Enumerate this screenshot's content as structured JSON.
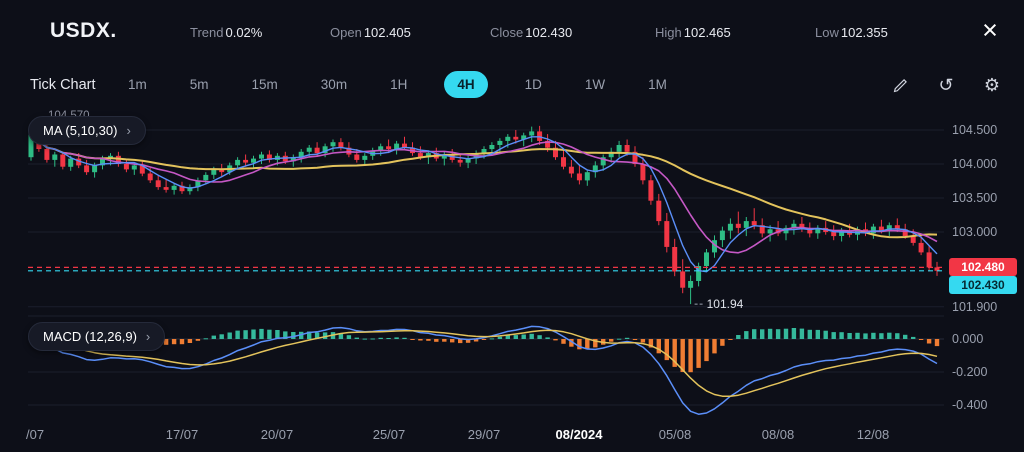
{
  "header": {
    "symbol": "USDX.",
    "stats": [
      {
        "label": "Trend",
        "value": "0.02%"
      },
      {
        "label": "Open",
        "value": "102.405"
      },
      {
        "label": "Close",
        "value": "102.430"
      },
      {
        "label": "High",
        "value": "102.465"
      },
      {
        "label": "Low",
        "value": "102.355"
      }
    ],
    "close_glyph": "×"
  },
  "toolbar": {
    "tick_chart_label": "Tick Chart",
    "timeframes": [
      "1m",
      "5m",
      "15m",
      "30m",
      "1H",
      "4H",
      "1D",
      "1W",
      "1M"
    ],
    "active_timeframe": "4H",
    "history_glyph": "↺",
    "settings_glyph": "⚙"
  },
  "chart": {
    "ma_label": "MA (5,10,30)",
    "macd_label": "MACD (12,26,9)",
    "chevron": "›",
    "top_left_price": "104.570",
    "price_axis_labels": [
      "104.500",
      "104.000",
      "103.500",
      "103.000",
      "101.900"
    ],
    "macd_axis_labels": [
      "0.000",
      "-0.200",
      "-0.400"
    ],
    "price_tags": [
      {
        "value": "102.480",
        "color": "#f23645",
        "text_color": "#ffffff"
      },
      {
        "value": "102.430",
        "color": "#35d9f0",
        "text_color": "#062a33"
      }
    ]
  },
  "chart_data": {
    "type": "candlestick",
    "symbol": "USDX",
    "timeframe": "4H",
    "price_axis_range": [
      101.8,
      104.66
    ],
    "macd_axis_range": [
      -0.48,
      0.1
    ],
    "price_gridlines": [
      104.5,
      104.0,
      103.5,
      103.0,
      101.9
    ],
    "macd_gridlines": [
      0,
      -0.2,
      -0.4
    ],
    "dashed_levels": [
      {
        "price": 102.48,
        "color": "#f23645"
      },
      {
        "price": 102.43,
        "color": "#35d9f0"
      }
    ],
    "low_annotation": {
      "price": 101.94,
      "label": "101.94"
    },
    "ma_periods": [
      5,
      10,
      30
    ],
    "macd_params": [
      12,
      26,
      9
    ],
    "x_ticks": [
      {
        "label": "/07",
        "ci": 0,
        "edge": true
      },
      {
        "label": "17/07",
        "ci": 19
      },
      {
        "label": "20/07",
        "ci": 31
      },
      {
        "label": "25/07",
        "ci": 45
      },
      {
        "label": "29/07",
        "ci": 57
      },
      {
        "label": "08/2024",
        "ci": 69,
        "em": true
      },
      {
        "label": "05/08",
        "ci": 81
      },
      {
        "label": "08/08",
        "ci": 94
      },
      {
        "label": "12/08",
        "ci": 106
      }
    ],
    "colors": {
      "up": "#2ebd85",
      "down": "#f23645",
      "hist_up": "#35b99c",
      "hist_down": "#ef7d33",
      "ma5": "#5b8ff9",
      "ma10": "#c558c5",
      "ma30": "#e3c35c",
      "macd_line": "#5b8ff9",
      "macd_signal": "#e3c35c",
      "grid": "#1b1f2c",
      "zero": "#262b3a",
      "accent": "#35d9f0"
    },
    "candles": [
      [
        104.1,
        104.57,
        104.05,
        104.45
      ],
      [
        104.45,
        104.52,
        104.18,
        104.22
      ],
      [
        104.22,
        104.3,
        104.02,
        104.06
      ],
      [
        104.06,
        104.18,
        103.96,
        104.14
      ],
      [
        104.14,
        104.18,
        103.92,
        103.96
      ],
      [
        103.96,
        104.12,
        103.9,
        104.08
      ],
      [
        104.08,
        104.16,
        103.94,
        103.98
      ],
      [
        103.98,
        104.06,
        103.84,
        103.88
      ],
      [
        103.88,
        104.02,
        103.8,
        103.98
      ],
      [
        103.98,
        104.12,
        103.92,
        104.08
      ],
      [
        104.08,
        104.16,
        103.98,
        104.12
      ],
      [
        104.12,
        104.18,
        103.96,
        104.0
      ],
      [
        104.0,
        104.08,
        103.88,
        103.92
      ],
      [
        103.92,
        104.02,
        103.84,
        103.98
      ],
      [
        103.98,
        104.04,
        103.82,
        103.86
      ],
      [
        103.86,
        103.94,
        103.72,
        103.76
      ],
      [
        103.76,
        103.84,
        103.62,
        103.66
      ],
      [
        103.66,
        103.78,
        103.58,
        103.62
      ],
      [
        103.62,
        103.72,
        103.55,
        103.68
      ],
      [
        103.68,
        103.74,
        103.56,
        103.6
      ],
      [
        103.6,
        103.7,
        103.55,
        103.66
      ],
      [
        103.66,
        103.8,
        103.6,
        103.76
      ],
      [
        103.76,
        103.88,
        103.7,
        103.84
      ],
      [
        103.84,
        103.96,
        103.78,
        103.92
      ],
      [
        103.92,
        104.0,
        103.82,
        103.88
      ],
      [
        103.88,
        104.02,
        103.84,
        103.98
      ],
      [
        103.98,
        104.1,
        103.92,
        104.06
      ],
      [
        104.06,
        104.14,
        103.96,
        104.02
      ],
      [
        104.02,
        104.12,
        103.94,
        104.08
      ],
      [
        104.08,
        104.18,
        104.0,
        104.14
      ],
      [
        104.14,
        104.2,
        104.02,
        104.06
      ],
      [
        104.06,
        104.16,
        103.98,
        104.12
      ],
      [
        104.12,
        104.18,
        104.0,
        104.04
      ],
      [
        104.04,
        104.14,
        103.96,
        104.1
      ],
      [
        104.1,
        104.22,
        104.02,
        104.18
      ],
      [
        104.18,
        104.28,
        104.1,
        104.24
      ],
      [
        104.24,
        104.32,
        104.12,
        104.16
      ],
      [
        104.16,
        104.3,
        104.1,
        104.26
      ],
      [
        104.26,
        104.36,
        104.18,
        104.32
      ],
      [
        104.32,
        104.38,
        104.2,
        104.24
      ],
      [
        104.24,
        104.32,
        104.1,
        104.14
      ],
      [
        104.14,
        104.22,
        104.02,
        104.06
      ],
      [
        104.06,
        104.16,
        103.98,
        104.12
      ],
      [
        104.12,
        104.24,
        104.06,
        104.2
      ],
      [
        104.2,
        104.3,
        104.12,
        104.26
      ],
      [
        104.26,
        104.36,
        104.16,
        104.22
      ],
      [
        104.22,
        104.34,
        104.14,
        104.3
      ],
      [
        104.3,
        104.4,
        104.2,
        104.24
      ],
      [
        104.24,
        104.32,
        104.12,
        104.16
      ],
      [
        104.16,
        104.26,
        104.06,
        104.1
      ],
      [
        104.1,
        104.2,
        104.0,
        104.16
      ],
      [
        104.16,
        104.24,
        104.04,
        104.08
      ],
      [
        104.08,
        104.18,
        103.98,
        104.14
      ],
      [
        104.14,
        104.22,
        104.02,
        104.06
      ],
      [
        104.06,
        104.14,
        103.96,
        104.02
      ],
      [
        104.02,
        104.12,
        103.94,
        104.08
      ],
      [
        104.08,
        104.2,
        104.0,
        104.16
      ],
      [
        104.16,
        104.26,
        104.08,
        104.22
      ],
      [
        104.22,
        104.32,
        104.12,
        104.28
      ],
      [
        104.28,
        104.38,
        104.18,
        104.34
      ],
      [
        104.34,
        104.44,
        104.24,
        104.4
      ],
      [
        104.4,
        104.5,
        104.3,
        104.36
      ],
      [
        104.36,
        104.46,
        104.26,
        104.42
      ],
      [
        104.42,
        104.55,
        104.32,
        104.48
      ],
      [
        104.48,
        104.56,
        104.28,
        104.34
      ],
      [
        104.34,
        104.44,
        104.18,
        104.24
      ],
      [
        104.24,
        104.34,
        104.06,
        104.1
      ],
      [
        104.1,
        104.2,
        103.92,
        103.96
      ],
      [
        103.96,
        104.06,
        103.8,
        103.86
      ],
      [
        103.86,
        103.98,
        103.7,
        103.76
      ],
      [
        103.76,
        103.92,
        103.68,
        103.88
      ],
      [
        103.88,
        104.04,
        103.8,
        103.98
      ],
      [
        103.98,
        104.14,
        103.9,
        104.1
      ],
      [
        104.1,
        104.24,
        104.02,
        104.18
      ],
      [
        104.18,
        104.34,
        104.1,
        104.28
      ],
      [
        104.28,
        104.36,
        104.12,
        104.18
      ],
      [
        104.18,
        104.26,
        103.96,
        104.0
      ],
      [
        104.0,
        104.1,
        103.7,
        103.76
      ],
      [
        103.76,
        103.84,
        103.4,
        103.46
      ],
      [
        103.46,
        103.56,
        103.1,
        103.16
      ],
      [
        103.16,
        103.28,
        102.7,
        102.78
      ],
      [
        102.78,
        102.9,
        102.35,
        102.42
      ],
      [
        102.42,
        102.6,
        102.1,
        102.18
      ],
      [
        102.18,
        102.36,
        101.94,
        102.28
      ],
      [
        102.28,
        102.55,
        102.2,
        102.5
      ],
      [
        102.5,
        102.75,
        102.42,
        102.7
      ],
      [
        102.7,
        102.95,
        102.62,
        102.88
      ],
      [
        102.88,
        103.08,
        102.78,
        103.02
      ],
      [
        103.02,
        103.2,
        102.9,
        103.12
      ],
      [
        103.12,
        103.3,
        102.98,
        103.06
      ],
      [
        103.06,
        103.22,
        102.94,
        103.16
      ],
      [
        103.16,
        103.35,
        103.04,
        103.1
      ],
      [
        103.1,
        103.2,
        102.92,
        102.98
      ],
      [
        102.98,
        103.1,
        102.86,
        103.04
      ],
      [
        103.04,
        103.16,
        102.94,
        102.98
      ],
      [
        102.98,
        103.1,
        102.88,
        103.06
      ],
      [
        103.06,
        103.18,
        102.96,
        103.12
      ],
      [
        103.12,
        103.22,
        103.0,
        103.04
      ],
      [
        103.04,
        103.14,
        102.92,
        102.98
      ],
      [
        102.98,
        103.1,
        102.9,
        103.06
      ],
      [
        103.06,
        103.16,
        102.96,
        103.0
      ],
      [
        103.0,
        103.1,
        102.88,
        102.94
      ],
      [
        102.94,
        103.06,
        102.86,
        103.02
      ],
      [
        103.02,
        103.12,
        102.92,
        102.96
      ],
      [
        102.96,
        103.08,
        102.88,
        103.04
      ],
      [
        103.04,
        103.14,
        102.94,
        102.98
      ],
      [
        102.98,
        103.12,
        102.9,
        103.08
      ],
      [
        103.08,
        103.18,
        102.98,
        103.02
      ],
      [
        103.02,
        103.14,
        102.94,
        103.1
      ],
      [
        103.1,
        103.2,
        103.0,
        103.04
      ],
      [
        103.04,
        103.12,
        102.9,
        102.94
      ],
      [
        102.94,
        103.04,
        102.8,
        102.84
      ],
      [
        102.84,
        102.96,
        102.66,
        102.7
      ],
      [
        102.7,
        102.8,
        102.42,
        102.48
      ],
      [
        102.48,
        102.56,
        102.355,
        102.43
      ]
    ]
  }
}
